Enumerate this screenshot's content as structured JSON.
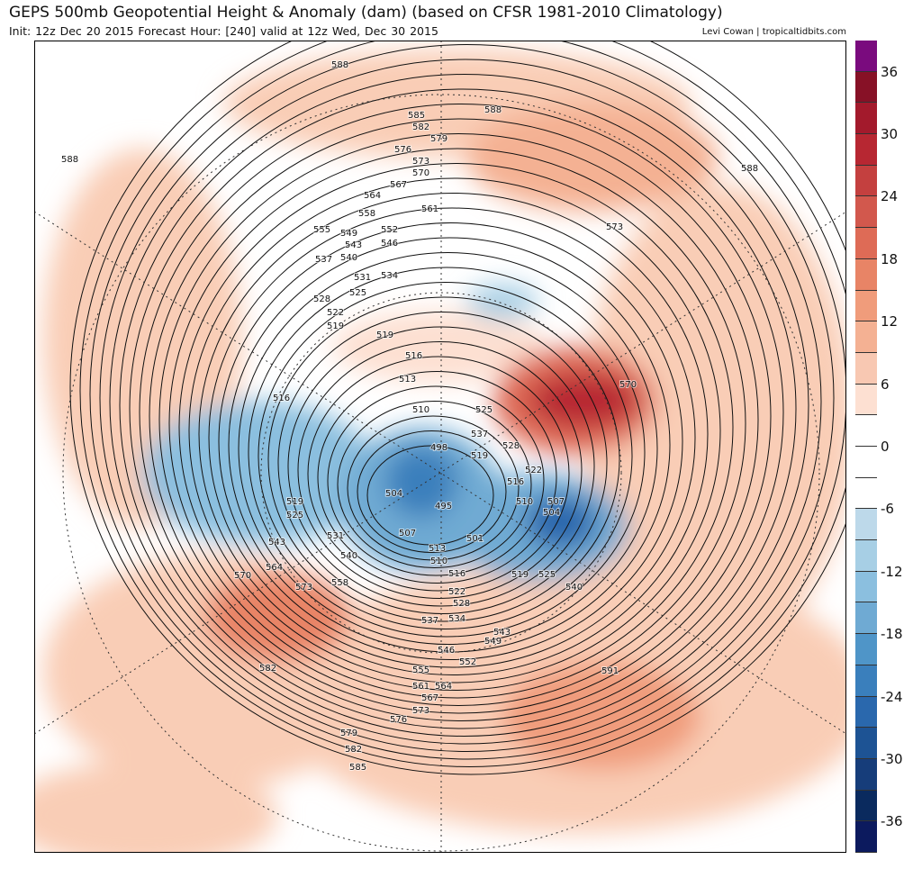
{
  "header": {
    "title": "GEPS 500mb Geopotential Height & Anomaly (dam) (based on CFSR 1981-2010 Climatology)",
    "subtitle": "Init: 12z Dec 20 2015   Forecast Hour: [240]   valid at 12z Wed, Dec 30 2015",
    "credit": "Levi Cowan | tropicaltidbits.com"
  },
  "colorbar": {
    "unit": "dam",
    "min": -39,
    "max": 39,
    "step": 3,
    "tick_labels": [
      "36",
      "30",
      "24",
      "18",
      "12",
      "6",
      "0",
      "-6",
      "-12",
      "-18",
      "-24",
      "-30",
      "-36"
    ],
    "colors": [
      "#0c1a5e",
      "#0a2a5e",
      "#163d7a",
      "#1d5394",
      "#2a68ad",
      "#3a7fbc",
      "#4f95c8",
      "#6faad3",
      "#8bbfdf",
      "#a7cfe5",
      "#bdd9ea",
      "#ffffff",
      "#ffffff",
      "#fde0d2",
      "#f8c8b2",
      "#f4b193",
      "#f09c7b",
      "#e88466",
      "#de6b56",
      "#d2584d",
      "#c4403f",
      "#b72732",
      "#a31a2c",
      "#871126",
      "#7a0b7e"
    ]
  },
  "contour_labels": [
    "588",
    "585",
    "582",
    "579",
    "576",
    "573",
    "570",
    "567",
    "564",
    "561",
    "558",
    "555",
    "552",
    "549",
    "546",
    "543",
    "540",
    "537",
    "534",
    "531",
    "528",
    "525",
    "522",
    "519",
    "516",
    "513",
    "510",
    "507",
    "504",
    "501",
    "498",
    "495",
    "591"
  ]
}
